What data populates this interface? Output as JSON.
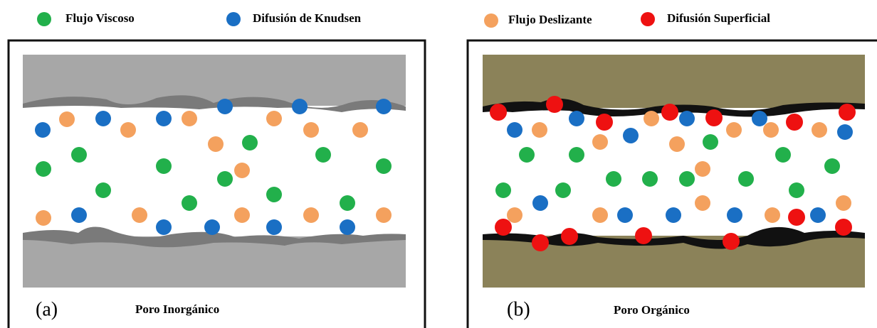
{
  "legend": {
    "items": [
      {
        "label": "Flujo Viscoso"
      },
      {
        "label": "Difusión de Knudsen"
      },
      {
        "label": "Flujo Deslizante"
      },
      {
        "label": "Difusión Superficial"
      }
    ]
  },
  "panels": [
    {
      "tag": "(a)",
      "caption": "Poro Inorgánico"
    },
    {
      "tag": "(b)",
      "caption": "Poro Orgánico"
    }
  ]
}
